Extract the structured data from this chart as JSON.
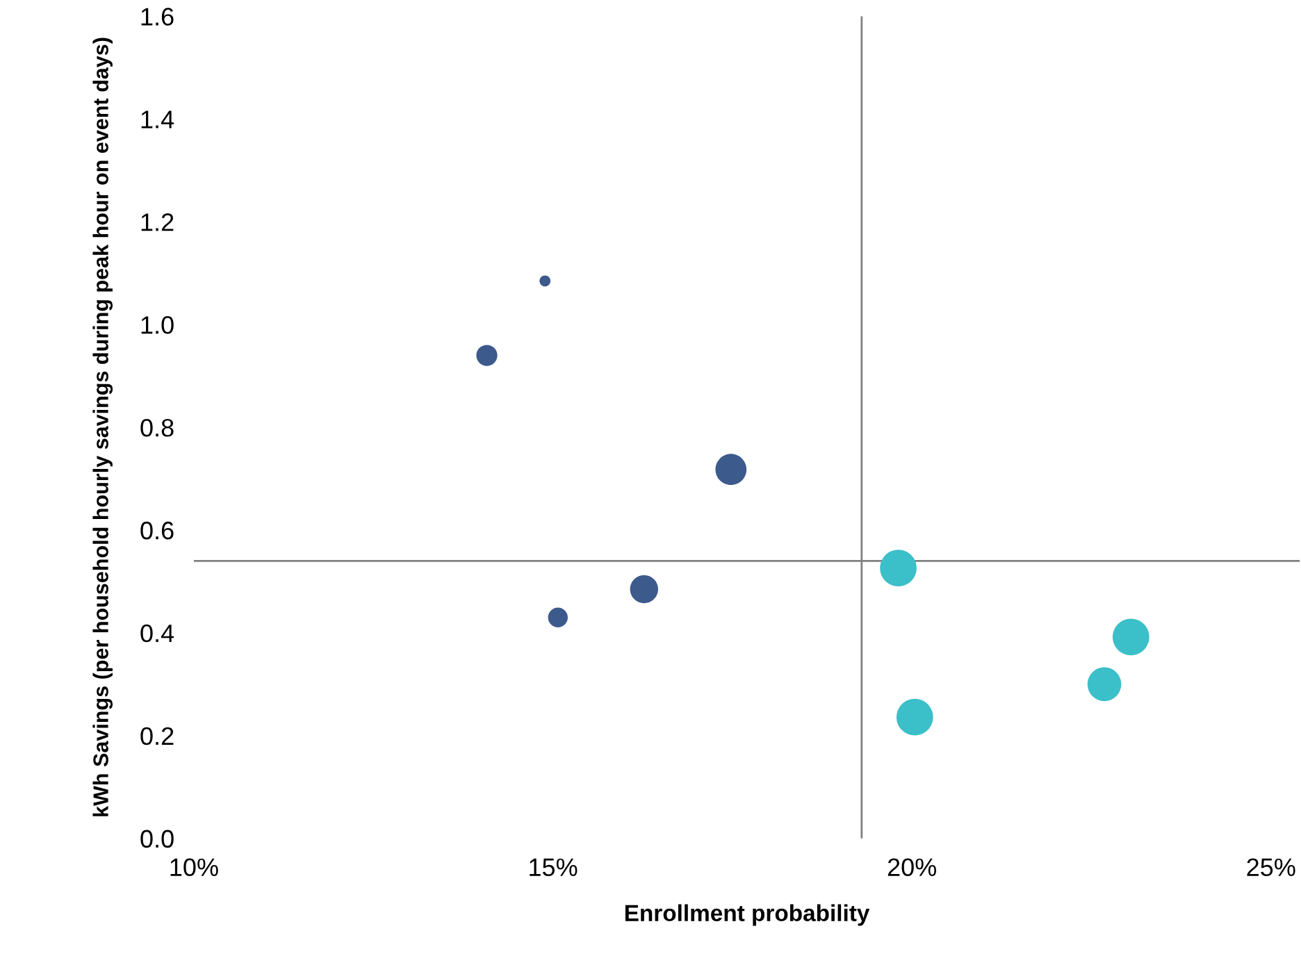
{
  "chart_data": {
    "type": "bubble",
    "xlabel": "Enrollment probability",
    "ylabel": "kWh Savings (per household hourly savings during peak hour on event days)",
    "xlim": [
      10,
      25.4
    ],
    "xticks": [
      {
        "value": 10,
        "label": "10%"
      },
      {
        "value": 15,
        "label": "15%"
      },
      {
        "value": 20,
        "label": "20%"
      },
      {
        "value": 25,
        "label": "25%"
      }
    ],
    "ylim": [
      0,
      1.6
    ],
    "yticks": [
      {
        "value": 0,
        "label": "0.0"
      },
      {
        "value": 0.2,
        "label": "0.2"
      },
      {
        "value": 0.4,
        "label": "0.4"
      },
      {
        "value": 0.6,
        "label": "0.6"
      },
      {
        "value": 0.8,
        "label": "0.8"
      },
      {
        "value": 1.0,
        "label": "1.0"
      },
      {
        "value": 1.2,
        "label": "1.2"
      },
      {
        "value": 1.4,
        "label": "1.4"
      },
      {
        "value": 1.6,
        "label": "1.6"
      }
    ],
    "ref_lines": [
      {
        "axis": "y",
        "value": 0.54,
        "color": "#808080"
      },
      {
        "axis": "x",
        "value": 19.3,
        "color": "#808080"
      }
    ],
    "grid": false,
    "series": [
      {
        "color": "#3d5a8c",
        "x": [
          14.08,
          14.89,
          17.48,
          15.07,
          16.27
        ],
        "values": [
          0.94,
          1.085,
          0.718,
          0.43,
          0.485
        ],
        "sizes": [
          0.33,
          0.09,
          0.72,
          0.29,
          0.59
        ]
      },
      {
        "color": "#3bbfc9",
        "x": [
          19.81,
          20.04,
          22.68,
          23.05
        ],
        "values": [
          0.526,
          0.236,
          0.3,
          0.392
        ],
        "sizes": [
          1,
          1,
          0.85,
          1
        ]
      }
    ]
  }
}
